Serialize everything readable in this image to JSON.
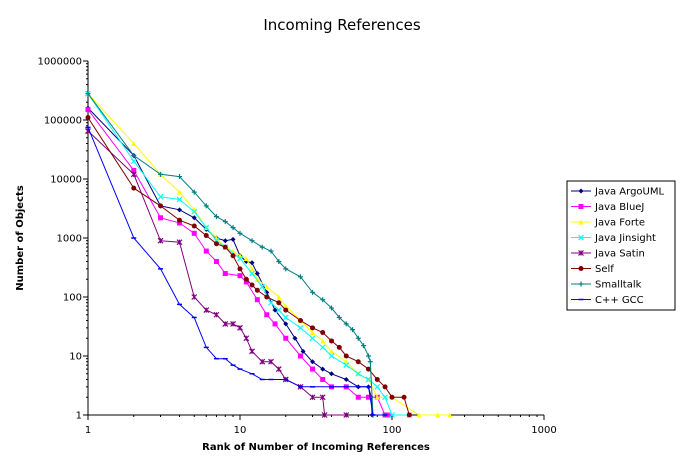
{
  "chart_data": {
    "type": "line",
    "title": "Incoming References",
    "xlabel": "Rank of Number of Incoming References",
    "ylabel": "Number of Objects",
    "x_scale": "log",
    "y_scale": "log",
    "xlim": [
      1,
      1000
    ],
    "ylim": [
      1,
      1000000
    ],
    "x_ticks": [
      "1",
      "10",
      "100",
      "1000"
    ],
    "y_ticks": [
      "1",
      "10",
      "100",
      "1000",
      "10000",
      "100000",
      "1000000"
    ],
    "grid": false,
    "legend_position": "right",
    "series": [
      {
        "name": "Java ArgoUML",
        "color": "#000080",
        "marker": "diamond",
        "points": [
          [
            1,
            160000
          ],
          [
            2,
            25000
          ],
          [
            3,
            3500
          ],
          [
            4,
            3000
          ],
          [
            5,
            2200
          ],
          [
            6,
            1400
          ],
          [
            7,
            1000
          ],
          [
            8,
            900
          ],
          [
            9,
            950
          ],
          [
            10,
            500
          ],
          [
            11,
            400
          ],
          [
            12,
            380
          ],
          [
            13,
            250
          ],
          [
            15,
            120
          ],
          [
            17,
            60
          ],
          [
            20,
            35
          ],
          [
            23,
            20
          ],
          [
            26,
            12
          ],
          [
            30,
            8
          ],
          [
            35,
            6
          ],
          [
            40,
            5
          ],
          [
            50,
            4
          ],
          [
            60,
            3
          ],
          [
            70,
            3
          ],
          [
            73,
            2
          ],
          [
            74,
            1
          ]
        ]
      },
      {
        "name": "Java BlueJ",
        "color": "#FF00FF",
        "marker": "square",
        "points": [
          [
            1,
            150000
          ],
          [
            2,
            14000
          ],
          [
            3,
            2200
          ],
          [
            4,
            1800
          ],
          [
            5,
            1200
          ],
          [
            6,
            600
          ],
          [
            7,
            400
          ],
          [
            8,
            250
          ],
          [
            10,
            230
          ],
          [
            11,
            180
          ],
          [
            13,
            90
          ],
          [
            15,
            50
          ],
          [
            17,
            35
          ],
          [
            20,
            20
          ],
          [
            25,
            10
          ],
          [
            30,
            6
          ],
          [
            35,
            4
          ],
          [
            40,
            3
          ],
          [
            50,
            3
          ],
          [
            60,
            2
          ],
          [
            70,
            2
          ],
          [
            80,
            2
          ],
          [
            90,
            1
          ],
          [
            95,
            1
          ]
        ]
      },
      {
        "name": "Java Forte",
        "color": "#FFFF00",
        "marker": "triangle",
        "points": [
          [
            1,
            280000
          ],
          [
            2,
            40000
          ],
          [
            3,
            12000
          ],
          [
            4,
            6000
          ],
          [
            5,
            3000
          ],
          [
            6,
            1500
          ],
          [
            7,
            1000
          ],
          [
            8,
            700
          ],
          [
            9,
            600
          ],
          [
            10,
            500
          ],
          [
            11,
            450
          ],
          [
            12,
            300
          ],
          [
            13,
            200
          ],
          [
            15,
            150
          ],
          [
            18,
            100
          ],
          [
            20,
            70
          ],
          [
            25,
            40
          ],
          [
            30,
            25
          ],
          [
            35,
            18
          ],
          [
            40,
            12
          ],
          [
            50,
            8
          ],
          [
            60,
            5
          ],
          [
            70,
            4
          ],
          [
            80,
            2
          ],
          [
            100,
            2
          ],
          [
            150,
            1
          ],
          [
            200,
            1
          ],
          [
            240,
            1
          ]
        ]
      },
      {
        "name": "Java Jinsight",
        "color": "#00FFFF",
        "marker": "x",
        "points": [
          [
            1,
            280000
          ],
          [
            2,
            20000
          ],
          [
            3,
            5000
          ],
          [
            4,
            4500
          ],
          [
            5,
            2800
          ],
          [
            6,
            1500
          ],
          [
            7,
            900
          ],
          [
            8,
            700
          ],
          [
            10,
            450
          ],
          [
            12,
            250
          ],
          [
            14,
            150
          ],
          [
            16,
            80
          ],
          [
            18,
            60
          ],
          [
            20,
            45
          ],
          [
            25,
            30
          ],
          [
            30,
            20
          ],
          [
            35,
            14
          ],
          [
            40,
            10
          ],
          [
            50,
            7
          ],
          [
            60,
            5
          ],
          [
            70,
            4
          ],
          [
            80,
            3
          ],
          [
            90,
            2
          ],
          [
            100,
            1
          ],
          [
            130,
            1
          ]
        ]
      },
      {
        "name": "Java Satin",
        "color": "#800080",
        "marker": "star",
        "points": [
          [
            1,
            65000
          ],
          [
            2,
            12000
          ],
          [
            3,
            900
          ],
          [
            4,
            850
          ],
          [
            5,
            100
          ],
          [
            6,
            60
          ],
          [
            7,
            50
          ],
          [
            8,
            35
          ],
          [
            9,
            35
          ],
          [
            10,
            30
          ],
          [
            11,
            20
          ],
          [
            12,
            12
          ],
          [
            14,
            8
          ],
          [
            16,
            8
          ],
          [
            18,
            6
          ],
          [
            20,
            4
          ],
          [
            25,
            3
          ],
          [
            30,
            2
          ],
          [
            35,
            2
          ],
          [
            36,
            1
          ],
          [
            50,
            1
          ]
        ]
      },
      {
        "name": "Self",
        "color": "#800000",
        "marker": "circle",
        "points": [
          [
            1,
            110000
          ],
          [
            2,
            7000
          ],
          [
            3,
            3500
          ],
          [
            4,
            2000
          ],
          [
            5,
            1600
          ],
          [
            6,
            1100
          ],
          [
            7,
            800
          ],
          [
            8,
            700
          ],
          [
            9,
            500
          ],
          [
            10,
            300
          ],
          [
            11,
            200
          ],
          [
            12,
            160
          ],
          [
            13,
            130
          ],
          [
            15,
            100
          ],
          [
            18,
            80
          ],
          [
            20,
            60
          ],
          [
            25,
            40
          ],
          [
            30,
            30
          ],
          [
            35,
            25
          ],
          [
            40,
            18
          ],
          [
            45,
            14
          ],
          [
            50,
            10
          ],
          [
            60,
            8
          ],
          [
            70,
            6
          ],
          [
            80,
            4
          ],
          [
            90,
            3
          ],
          [
            100,
            2
          ],
          [
            120,
            2
          ],
          [
            130,
            1
          ]
        ]
      },
      {
        "name": "Smalltalk",
        "color": "#008080",
        "marker": "plus",
        "points": [
          [
            1,
            280000
          ],
          [
            2,
            25000
          ],
          [
            3,
            12000
          ],
          [
            4,
            11000
          ],
          [
            5,
            6000
          ],
          [
            6,
            3500
          ],
          [
            7,
            2300
          ],
          [
            8,
            1900
          ],
          [
            9,
            1500
          ],
          [
            10,
            1200
          ],
          [
            12,
            900
          ],
          [
            14,
            700
          ],
          [
            16,
            600
          ],
          [
            18,
            400
          ],
          [
            20,
            300
          ],
          [
            25,
            220
          ],
          [
            30,
            120
          ],
          [
            35,
            90
          ],
          [
            40,
            65
          ],
          [
            45,
            45
          ],
          [
            50,
            35
          ],
          [
            55,
            28
          ],
          [
            60,
            20
          ],
          [
            65,
            15
          ],
          [
            70,
            10
          ],
          [
            72,
            8
          ],
          [
            75,
            1
          ],
          [
            90,
            1
          ]
        ]
      },
      {
        "name": "C++ GCC",
        "color": "#0000FF",
        "marker": "dash",
        "points": [
          [
            1,
            75000
          ],
          [
            2,
            1000
          ],
          [
            3,
            300
          ],
          [
            4,
            75
          ],
          [
            5,
            45
          ],
          [
            6,
            14
          ],
          [
            7,
            9
          ],
          [
            8,
            9
          ],
          [
            9,
            7
          ],
          [
            10,
            6
          ],
          [
            12,
            5
          ],
          [
            14,
            4
          ],
          [
            16,
            4
          ],
          [
            20,
            4
          ],
          [
            25,
            3
          ],
          [
            30,
            3
          ],
          [
            40,
            3
          ],
          [
            50,
            3
          ],
          [
            60,
            3
          ],
          [
            70,
            3
          ],
          [
            75,
            1
          ],
          [
            90,
            1
          ]
        ]
      }
    ]
  }
}
